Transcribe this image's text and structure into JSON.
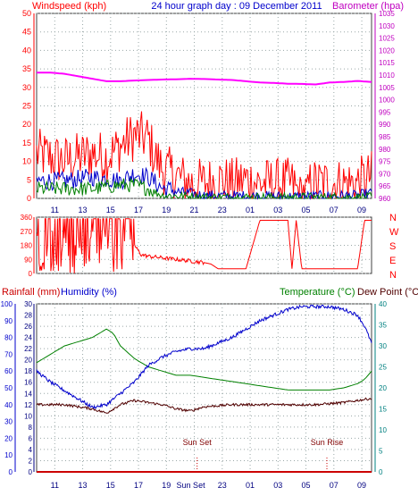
{
  "header": {
    "left_label": "Windspeed (kph)",
    "title": "24 hour graph day : 09 December 2011",
    "right_label": "Barometer (hpa)"
  },
  "colors": {
    "wind": "#ff0000",
    "gust_avg": "#0000cc",
    "green": "#008000",
    "baro": "#ff00ff",
    "temp": "#008000",
    "dew": "#500000",
    "humidity": "#0000cc",
    "rain": "#cc0000",
    "left_axis": "#ff0000",
    "right_axis": "#c000c0",
    "teal": "#008080",
    "grid": "#9aa8a8"
  },
  "x_labels": [
    "11",
    "13",
    "15",
    "17",
    "19",
    "21",
    "23",
    "01",
    "03",
    "05",
    "07",
    "09"
  ],
  "x_labels_bottom": [
    "11",
    "13",
    "15",
    "17",
    "19",
    "Sun Set",
    "23",
    "01",
    "03",
    "05",
    "07",
    "09"
  ],
  "annotations": {
    "sunset": "Sun Set",
    "sunrise": "Sun Rise"
  },
  "chart_data": [
    {
      "type": "line",
      "name": "wind_barometer",
      "ylabel": "Windspeed (kph)",
      "y2label": "Barometer (hpa)",
      "ylim": [
        0,
        50
      ],
      "y2lim": [
        960,
        1035
      ],
      "yticks": [
        0,
        5,
        10,
        15,
        20,
        25,
        30,
        35,
        40,
        45,
        50
      ],
      "y2ticks": [
        960,
        965,
        970,
        975,
        980,
        985,
        990,
        995,
        1000,
        1005,
        1010,
        1015,
        1020,
        1025,
        1030,
        1035
      ],
      "grid": true,
      "series": [
        {
          "role": "wind",
          "x": [
            0,
            1,
            2,
            3,
            4,
            5,
            6,
            7,
            8,
            8.5,
            9,
            10,
            11,
            12,
            13,
            14,
            15,
            16,
            17,
            18,
            19,
            20,
            21,
            22,
            23,
            24
          ],
          "y": [
            10,
            9,
            8,
            9,
            10,
            9,
            12,
            15,
            14,
            9,
            6,
            4,
            2,
            2,
            3,
            2,
            3,
            2,
            2,
            2,
            1,
            2,
            2,
            2,
            2,
            4
          ]
        },
        {
          "role": "gust_avg",
          "x": [
            0,
            2,
            4,
            6,
            7,
            8,
            9,
            12,
            18,
            23,
            24
          ],
          "y": [
            4,
            4,
            5,
            4,
            6,
            5,
            2,
            0.3,
            0,
            0.3,
            1
          ]
        },
        {
          "role": "green",
          "x": [
            0,
            2,
            4,
            6,
            7,
            8,
            9,
            12,
            24
          ],
          "y": [
            2,
            2,
            2,
            3,
            3,
            2,
            0.5,
            0,
            0
          ]
        },
        {
          "role": "baro",
          "axis": "y2",
          "x": [
            0,
            1,
            2,
            3,
            4,
            5,
            6,
            7,
            8,
            9,
            10,
            11,
            12,
            13,
            14,
            15,
            16,
            17,
            18,
            19,
            20,
            21,
            22,
            23,
            24
          ],
          "y": [
            1011,
            1011,
            1010.5,
            1009.5,
            1008.5,
            1007.5,
            1007.5,
            1007.8,
            1008,
            1008.2,
            1008.3,
            1008.5,
            1008.4,
            1008.2,
            1008,
            1007.5,
            1007,
            1006.8,
            1006.5,
            1006.4,
            1006.2,
            1007,
            1007.2,
            1007.6,
            1007.2
          ]
        }
      ]
    },
    {
      "type": "line",
      "name": "wind_direction",
      "ylim": [
        0,
        360
      ],
      "yticks": [
        0,
        90,
        180,
        270,
        360
      ],
      "compass_labels": [
        "N",
        "W",
        "S",
        "E",
        "N"
      ],
      "grid": true,
      "series": [
        {
          "role": "wind",
          "x": [
            0,
            0.5,
            1,
            1.5,
            2,
            2.5,
            3,
            3.5,
            4,
            4.5,
            5,
            5.5,
            6,
            6.5,
            7,
            7.5,
            8,
            9,
            10,
            11,
            12,
            12.5,
            13,
            14,
            15,
            16,
            17,
            18,
            18.3,
            18.6,
            19,
            19.5,
            20,
            21,
            22,
            23,
            23.5,
            24
          ],
          "y": [
            340,
            60,
            350,
            120,
            350,
            40,
            345,
            90,
            350,
            200,
            355,
            320,
            350,
            270,
            180,
            120,
            110,
            100,
            90,
            80,
            70,
            60,
            30,
            30,
            30,
            340,
            340,
            340,
            30,
            340,
            30,
            30,
            30,
            30,
            30,
            30,
            340,
            340
          ]
        }
      ]
    },
    {
      "type": "line",
      "name": "temp_humidity_rain",
      "y1label": "Rainfall (mm)",
      "y2label": "Humidity (%)",
      "y3label": "Temperature (°C)",
      "y4label": "Dew Point (°C)",
      "rain_lim": [
        0,
        100
      ],
      "rain_ticks": [
        0,
        10,
        20,
        30,
        40,
        50,
        60,
        70,
        80,
        90,
        100
      ],
      "hum_ticks": [
        0,
        2,
        4,
        6,
        8,
        10,
        12,
        14,
        16,
        18,
        20,
        22,
        24,
        26,
        28,
        30
      ],
      "temp_lim": [
        0,
        40
      ],
      "temp_ticks": [
        0,
        5,
        10,
        15,
        20,
        25,
        30,
        35,
        40
      ],
      "grid": true,
      "series": [
        {
          "role": "temp",
          "axis": "temp",
          "x": [
            0,
            1,
            2,
            3,
            4,
            4.5,
            5,
            5.5,
            6,
            7,
            8,
            9,
            10,
            11,
            12,
            13,
            14,
            15,
            16,
            17,
            18,
            19,
            20,
            21,
            22,
            23,
            23.5,
            24
          ],
          "y": [
            26,
            28,
            30,
            31,
            32,
            33,
            34,
            33,
            30,
            27,
            25,
            24,
            23,
            23,
            22.5,
            22,
            21.5,
            21,
            20.5,
            20,
            19.5,
            19.5,
            19.5,
            19.5,
            20,
            21,
            22,
            24
          ]
        },
        {
          "role": "humidity",
          "axis": "hum",
          "x": [
            0,
            1,
            2,
            3,
            4,
            5,
            6,
            7,
            8,
            9,
            10,
            11,
            12,
            13,
            14,
            15,
            16,
            17,
            18,
            19,
            20,
            21,
            22,
            23,
            23.5,
            24
          ],
          "y": [
            18,
            16,
            14.5,
            13,
            11.5,
            12,
            14,
            16,
            19,
            20.5,
            21.5,
            22,
            22,
            23,
            24,
            25.5,
            27,
            28,
            29,
            29.5,
            29.5,
            29.5,
            29,
            28,
            26,
            23
          ]
        },
        {
          "role": "dew",
          "axis": "temp",
          "x": [
            0,
            2,
            4,
            5,
            6,
            7,
            8,
            9,
            10,
            11,
            12,
            14,
            16,
            18,
            20,
            22,
            24
          ],
          "y": [
            16,
            16,
            15,
            14,
            16,
            17,
            16.5,
            16,
            15,
            14.5,
            15.5,
            16,
            16,
            16,
            16,
            16.5,
            17.5
          ]
        },
        {
          "role": "rain",
          "axis": "rain",
          "x": [
            0,
            24
          ],
          "y": [
            0,
            0
          ]
        }
      ]
    }
  ]
}
